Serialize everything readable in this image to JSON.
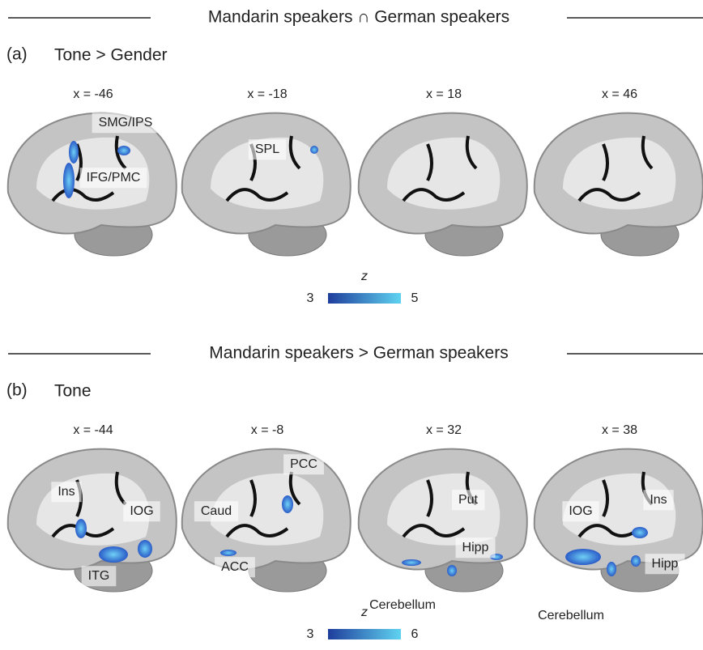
{
  "panels": [
    {
      "header": "Mandarin speakers ∩ German speakers",
      "letter": "(a)",
      "title": "Tone > Gender",
      "slices": [
        {
          "label": "x = -46",
          "regions": [
            "SMG/IPS",
            "IFG/PMC"
          ]
        },
        {
          "label": "x = -18",
          "regions": [
            "SPL"
          ]
        },
        {
          "label": "x = 18"
        },
        {
          "label": "x = 46"
        }
      ],
      "colorbar": {
        "label": "z",
        "min": 3,
        "max": 5
      }
    },
    {
      "header": "Mandarin speakers > German speakers",
      "letter": "(b)",
      "title": "Tone",
      "slices": [
        {
          "label": "x = -44",
          "regions": [
            "Ins",
            "IOG",
            "ITG"
          ]
        },
        {
          "label": "x = -8",
          "regions": [
            "PCC",
            "Caud",
            "ACC"
          ]
        },
        {
          "label": "x = 32",
          "regions": [
            "Put",
            "Hipp",
            "Cerebellum"
          ]
        },
        {
          "label": "x = 38",
          "regions": [
            "Ins",
            "IOG",
            "Hipp",
            "Cerebellum"
          ]
        }
      ],
      "colorbar": {
        "label": "z",
        "min": 3,
        "max": 6
      }
    }
  ]
}
